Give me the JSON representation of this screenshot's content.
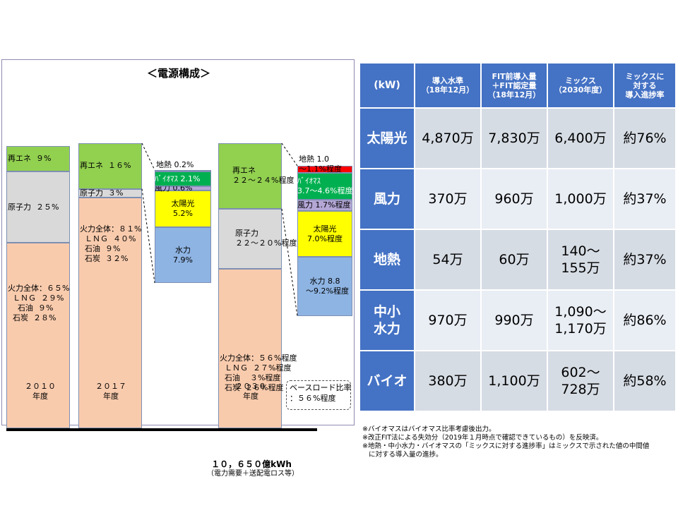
{
  "chart_data": {
    "type": "bar",
    "title": "＜電源構成＞",
    "categories": [
      "２０１０\n年度",
      "２０１７\n年度",
      "２０３０\n年度"
    ],
    "bars": [
      {
        "name": "2010",
        "segments": [
          {
            "name": "火力",
            "value": 65,
            "color": "#f9cbad",
            "label": "火力全体：６５%\n  ＬＮＧ  ２９%\n    石油  ９%\n  石炭  ２８%"
          },
          {
            "name": "原子力",
            "value": 25,
            "color": "#d9d9d9",
            "label": "原子力  ２５%"
          },
          {
            "name": "再エネ",
            "value": 9,
            "color": "#92d050",
            "label": "再エネ  ９%"
          }
        ]
      },
      {
        "name": "2017",
        "segments": [
          {
            "name": "火力",
            "value": 81,
            "color": "#f9cbad",
            "label": "火力全体：８１%\n  ＬＮＧ  ４０%\n  石油  ９%\n  石炭  ３２%"
          },
          {
            "name": "原子力",
            "value": 3,
            "color": "#d9d9d9",
            "label": "原子力  ３%"
          },
          {
            "name": "再エネ",
            "value": 16,
            "color": "#92d050",
            "label": "再エネ  １６%"
          }
        ]
      },
      {
        "name": "2030",
        "segments": [
          {
            "name": "火力",
            "value": 56,
            "color": "#f9cbad",
            "label": "火力全体：５６%程度\n  ＬＮＧ  ２７%程度\n  石油    ３%程度\n  石炭  ２６%程度"
          },
          {
            "name": "原子力",
            "value": 21,
            "color": "#d9d9d9",
            "label": "原子力\n２２～２０%程度"
          },
          {
            "name": "再エネ",
            "value": 23,
            "color": "#92d050",
            "label": "再エネ\n２２～２４%程度"
          }
        ]
      }
    ],
    "breakdowns": [
      {
        "name": "2017再エネ内訳",
        "segments": [
          {
            "name": "水力",
            "value": 7.9,
            "color": "#8eb4e3",
            "label": "水力\n7.9%"
          },
          {
            "name": "太陽光",
            "value": 5.2,
            "color": "#ffff00",
            "label": "太陽光\n5.2%"
          },
          {
            "name": "風力",
            "value": 0.6,
            "color": "#b4a7d6",
            "label": "風力 0.6%"
          },
          {
            "name": "バイオマス",
            "value": 2.1,
            "color": "#00b050",
            "label": "ﾊﾞｲｵﾏｽ 2.1%"
          },
          {
            "name": "地熱",
            "value": 0.2,
            "color": "#ff0000",
            "label": "地熱 0.2%"
          }
        ]
      },
      {
        "name": "2030再エネ内訳",
        "segments": [
          {
            "name": "水力",
            "value": 9.0,
            "color": "#8eb4e3",
            "label": "水力 8.8\n～9.2%程度"
          },
          {
            "name": "太陽光",
            "value": 7.0,
            "color": "#ffff00",
            "label": "太陽光\n7.0%程度"
          },
          {
            "name": "風力",
            "value": 1.7,
            "color": "#b4a7d6",
            "label": "風力 1.7%程度"
          },
          {
            "name": "バイオマス",
            "value": 4.15,
            "color": "#00b050",
            "label": "ﾊﾞｲｵﾏｽ\n3.7～4.6%程度"
          },
          {
            "name": "地熱",
            "value": 1.05,
            "color": "#ff0000",
            "label": "地熱 1.0\n～1.1%程度"
          }
        ]
      }
    ],
    "baseload_note": "ベースロード比率\n：５６%程度",
    "total": "１０，６５０億kWh",
    "total_sub": "（電力需要＋送配電ロス等）"
  },
  "table": {
    "headers": [
      "(kW)",
      "導入水準\n（18年12月）",
      "FIT前導入量\n＋FIT認定量\n（18年12月）",
      "ミックス\n（2030年度）",
      "ミックスに\n対する\n導入進捗率"
    ],
    "rows": [
      [
        "太陽光",
        "4,870万",
        "7,830万",
        "6,400万",
        "約76%"
      ],
      [
        "風力",
        "370万",
        "960万",
        "1,000万",
        "約37%"
      ],
      [
        "地熱",
        "54万",
        "60万",
        "140～\n155万",
        "約37%"
      ],
      [
        "中小\n水力",
        "970万",
        "990万",
        "1,090～\n1,170万",
        "約86%"
      ],
      [
        "バイオ",
        "380万",
        "1,100万",
        "602～\n728万",
        "約58%"
      ]
    ]
  },
  "footnotes": [
    "※バイオマスはバイオマス比率考慮後出力。",
    "※改正FIT法による失効分（2019年１月時点で確認できているもの）を反映済。",
    "※地熱・中小水力・バイオマスの「ミックスに対する進捗率」はミックスで示された値の中間値",
    "   に対する導入量の進捗。"
  ]
}
